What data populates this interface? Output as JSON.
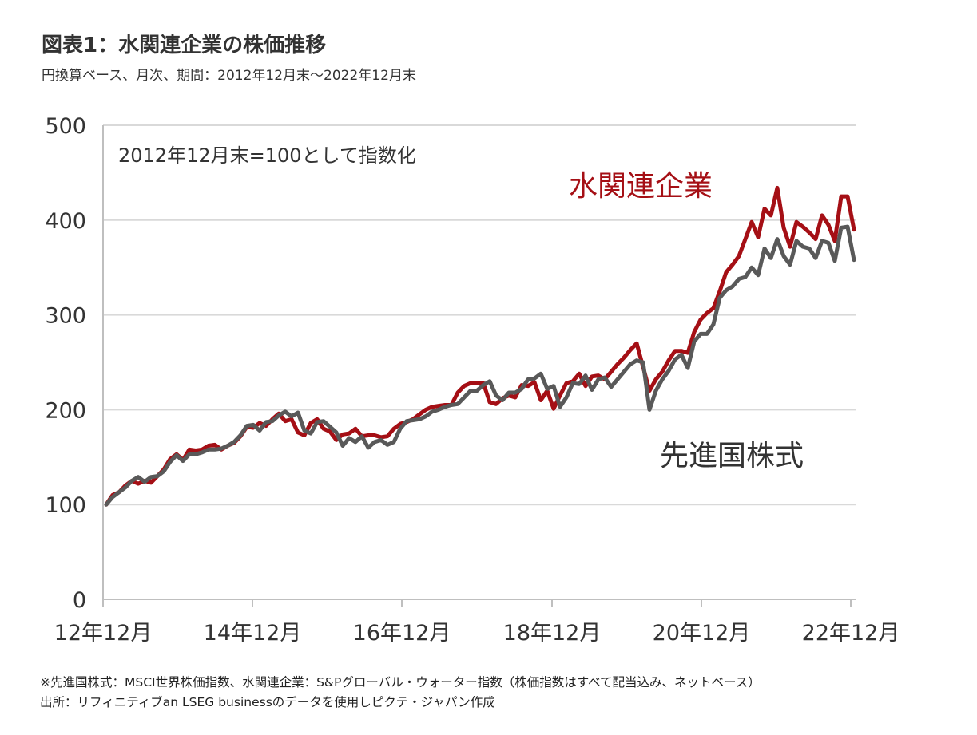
{
  "header": {
    "title": "図表1：水関連企業の株価推移",
    "subtitle": "円換算ベース、月次、期間：2012年12月末～2022年12月末"
  },
  "chart_data": {
    "type": "line",
    "ylim": [
      0,
      500
    ],
    "yticks": [
      "0",
      "100",
      "200",
      "300",
      "400",
      "500"
    ],
    "xticks": [
      "12年12月",
      "14年12月",
      "16年12月",
      "18年12月",
      "20年12月",
      "22年12月"
    ],
    "annotation": "2012年12月末=100として指数化",
    "grid": true,
    "series": [
      {
        "name": "水関連企業",
        "color": "#A50F15",
        "values": [
          100,
          110,
          113,
          120,
          125,
          122,
          125,
          123,
          130,
          137,
          148,
          153,
          147,
          158,
          157,
          158,
          162,
          163,
          158,
          162,
          165,
          172,
          182,
          181,
          186,
          183,
          190,
          196,
          188,
          190,
          176,
          173,
          186,
          190,
          180,
          177,
          168,
          174,
          175,
          180,
          172,
          173,
          173,
          171,
          172,
          180,
          185,
          187,
          190,
          195,
          200,
          203,
          204,
          205,
          205,
          218,
          225,
          228,
          228,
          228,
          208,
          206,
          212,
          215,
          213,
          226,
          225,
          229,
          210,
          220,
          201,
          215,
          228,
          230,
          238,
          225,
          235,
          236,
          232,
          240,
          248,
          255,
          263,
          270,
          245,
          220,
          232,
          240,
          252,
          262,
          262,
          260,
          282,
          295,
          302,
          307,
          325,
          345,
          353,
          362,
          380,
          398,
          382,
          412,
          405,
          434,
          392,
          372,
          398,
          393,
          387,
          380,
          405,
          395,
          378,
          425,
          425,
          390
        ]
      },
      {
        "name": "先進国株式",
        "color": "#595959",
        "values": [
          100,
          108,
          113,
          118,
          125,
          129,
          124,
          129,
          130,
          135,
          145,
          152,
          146,
          153,
          153,
          155,
          158,
          158,
          159,
          162,
          166,
          173,
          183,
          184,
          178,
          187,
          188,
          194,
          198,
          193,
          197,
          178,
          175,
          187,
          188,
          182,
          176,
          162,
          170,
          166,
          172,
          160,
          166,
          168,
          163,
          166,
          180,
          188,
          189,
          190,
          193,
          198,
          200,
          203,
          205,
          206,
          213,
          220,
          220,
          226,
          230,
          215,
          210,
          218,
          218,
          222,
          232,
          233,
          238,
          222,
          225,
          203,
          213,
          228,
          227,
          236,
          221,
          232,
          234,
          224,
          232,
          240,
          248,
          252,
          250,
          200,
          220,
          232,
          241,
          253,
          258,
          244,
          272,
          280,
          280,
          290,
          318,
          326,
          330,
          338,
          340,
          350,
          342,
          370,
          360,
          380,
          362,
          353,
          378,
          372,
          370,
          360,
          378,
          376,
          357,
          392,
          393,
          358
        ]
      }
    ]
  },
  "labels": {
    "water": "水関連企業",
    "developed": "先進国株式"
  },
  "footnotes": {
    "note1": "※先進国株式：MSCI世界株価指数、水関連企業：S&Pグローバル・ウォーター指数（株価指数はすべて配当込み、ネットベース）",
    "note2": "出所：リフィニティブan LSEG businessのデータを使用しピクテ・ジャパン作成"
  }
}
